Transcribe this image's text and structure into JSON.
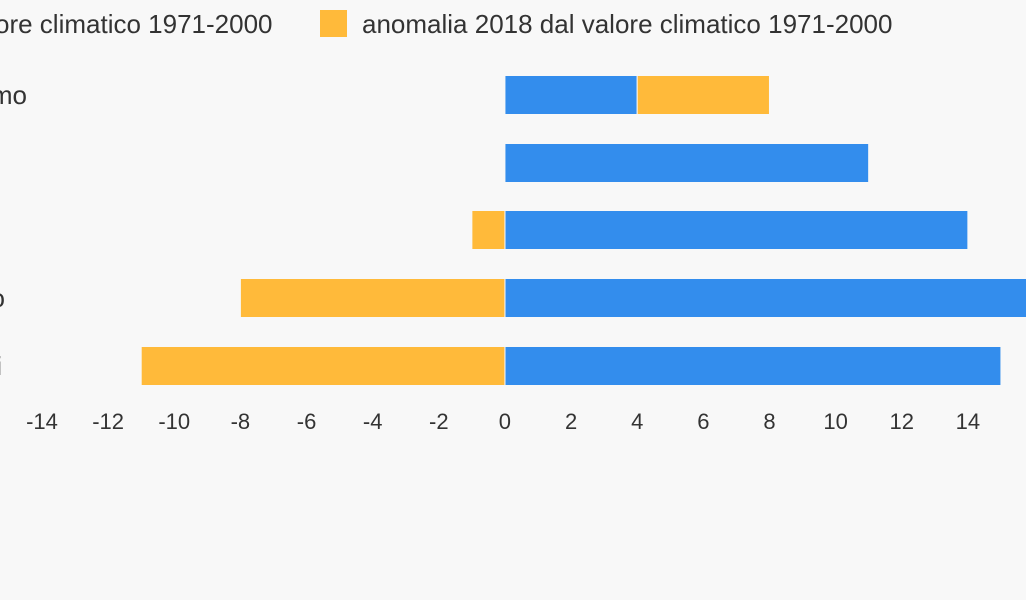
{
  "chart_data": {
    "type": "bar",
    "orientation": "horizontal",
    "stacked": true,
    "categories": [
      "mo",
      null,
      null,
      "o",
      "i"
    ],
    "series": [
      {
        "name": "ore climatico 1971-2000",
        "color": "#338ded",
        "values": [
          4,
          11,
          14,
          16,
          15
        ]
      },
      {
        "name": "anomalia 2018 dal valore climatico 1971-2000",
        "color": "#ffba3a",
        "values": [
          4,
          0,
          -1,
          -8,
          -11
        ]
      }
    ],
    "xlim": [
      -14,
      16
    ],
    "xticks": [
      -14,
      -12,
      -10,
      -8,
      -6,
      -4,
      -2,
      0,
      2,
      4,
      6,
      8,
      10,
      12,
      14
    ]
  }
}
